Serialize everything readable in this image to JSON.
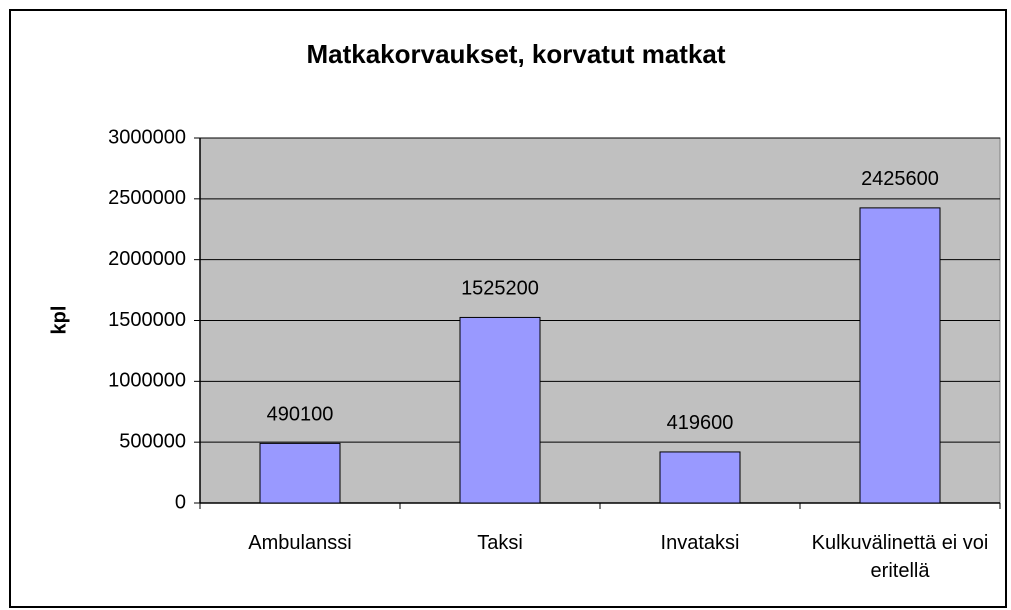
{
  "chart_data": {
    "type": "bar",
    "title": "Matkakorvaukset, korvatut matkat",
    "y_label": "kpl",
    "categories": [
      "Ambulanssi",
      "Taksi",
      "Invataksi",
      "Kulkuvälinettä ei voi eritellä"
    ],
    "values": [
      490100,
      1525200,
      419600,
      2425600
    ],
    "color": "#9999ff",
    "ylim": [
      0,
      3000000
    ],
    "yticks": [
      0,
      500000,
      1000000,
      1500000,
      2000000,
      2500000,
      3000000
    ],
    "grid": true
  }
}
